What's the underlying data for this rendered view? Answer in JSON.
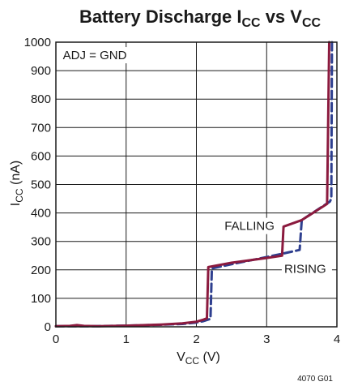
{
  "chart_data": {
    "type": "line",
    "title": {
      "main": "Battery Discharge I",
      "sub1": "CC",
      "mid": " vs V",
      "sub2": "CC"
    },
    "xlabel": {
      "main": "V",
      "sub": "CC",
      "rest": " (V)"
    },
    "ylabel": {
      "main": "I",
      "sub": "CC",
      "rest": " (nA)"
    },
    "xlim": [
      0,
      4
    ],
    "ylim": [
      0,
      1000
    ],
    "x_ticks": [
      0,
      1,
      2,
      3,
      4
    ],
    "y_ticks": [
      0,
      100,
      200,
      300,
      400,
      500,
      600,
      700,
      800,
      900,
      1000
    ],
    "grid": true,
    "series": [
      {
        "name": "FALLING",
        "color": "#8b1a3e",
        "line_style": "solid",
        "points": [
          [
            0,
            2
          ],
          [
            0.2,
            3
          ],
          [
            0.3,
            6
          ],
          [
            0.4,
            3
          ],
          [
            0.6,
            2
          ],
          [
            1.0,
            4
          ],
          [
            1.5,
            8
          ],
          [
            1.8,
            12
          ],
          [
            2.0,
            18
          ],
          [
            2.1,
            25
          ],
          [
            2.15,
            30
          ],
          [
            2.17,
            210
          ],
          [
            2.5,
            225
          ],
          [
            3.0,
            242
          ],
          [
            3.22,
            250
          ],
          [
            3.24,
            352
          ],
          [
            3.5,
            375
          ],
          [
            3.86,
            432
          ],
          [
            3.89,
            1000
          ]
        ]
      },
      {
        "name": "RISING",
        "color": "#2e3f8f",
        "line_style": "dashed",
        "points": [
          [
            0,
            2
          ],
          [
            0.5,
            2
          ],
          [
            1.0,
            4
          ],
          [
            1.5,
            7
          ],
          [
            1.8,
            10
          ],
          [
            2.0,
            15
          ],
          [
            2.1,
            20
          ],
          [
            2.2,
            28
          ],
          [
            2.22,
            205
          ],
          [
            2.5,
            220
          ],
          [
            3.0,
            245
          ],
          [
            3.47,
            270
          ],
          [
            3.5,
            375
          ],
          [
            3.9,
            440
          ],
          [
            3.92,
            450
          ],
          [
            3.93,
            1000
          ]
        ]
      }
    ],
    "annotations": [
      {
        "text": "ADJ = GND",
        "x": 0.1,
        "y": 940
      },
      {
        "text": "FALLING",
        "x": 2.4,
        "y": 340
      },
      {
        "text": "RISING",
        "x": 3.25,
        "y": 190
      }
    ],
    "figure_id": "4070 G01"
  }
}
